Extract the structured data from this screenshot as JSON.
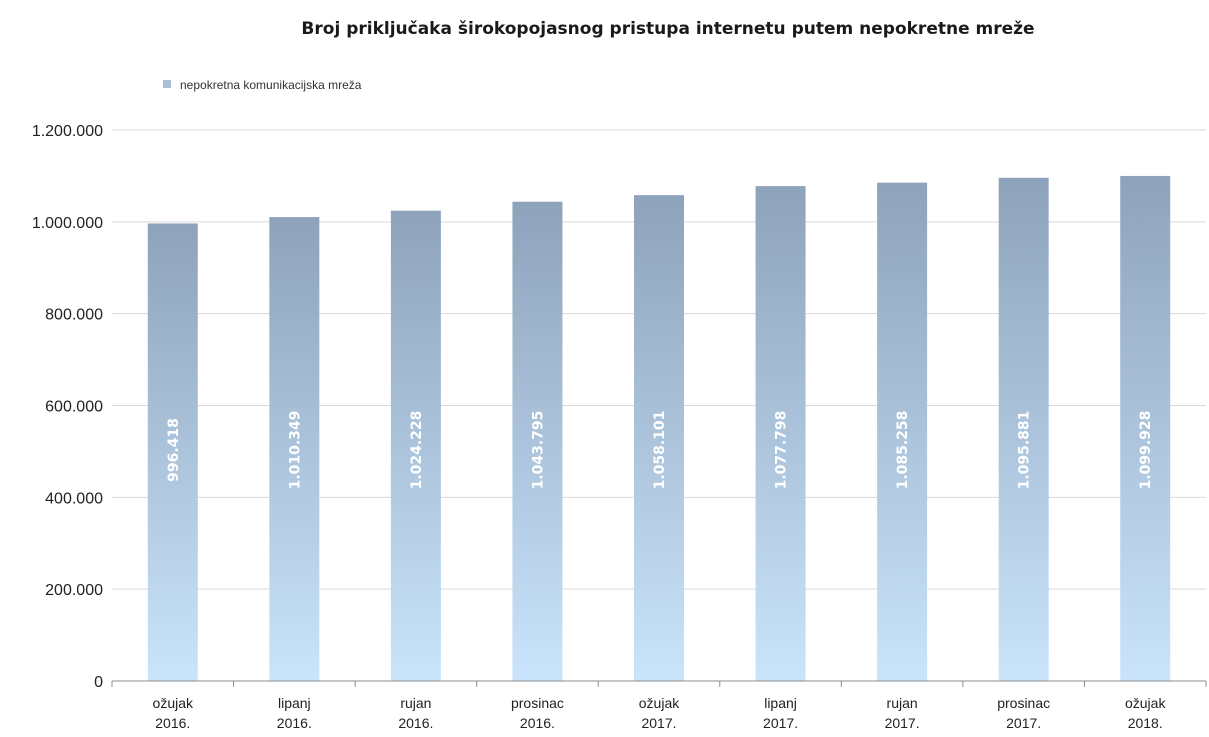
{
  "chart_data": {
    "type": "bar",
    "title": "Broj priključaka širokopojasnog pristupa internetu putem nepokretne mreže",
    "xlabel": "",
    "ylabel": "",
    "ylim": [
      0,
      1200000
    ],
    "yticks": [
      0,
      200000,
      400000,
      600000,
      800000,
      1000000,
      1200000
    ],
    "ytick_labels": [
      "0",
      "200.000",
      "400.000",
      "600.000",
      "800.000",
      "1.000.000",
      "1.200.000"
    ],
    "grid": true,
    "legend_position": "top-left",
    "categories": [
      [
        "ožujak",
        "2016."
      ],
      [
        "lipanj",
        "2016."
      ],
      [
        "rujan",
        "2016."
      ],
      [
        "prosinac",
        "2016."
      ],
      [
        "ožujak",
        "2017."
      ],
      [
        "lipanj",
        "2017."
      ],
      [
        "rujan",
        "2017."
      ],
      [
        "prosinac",
        "2017."
      ],
      [
        "ožujak",
        "2018."
      ]
    ],
    "series": [
      {
        "name": "nepokretna komunikacijska mreža",
        "color_top": "#8ea3bb",
        "color_bottom": "#c9e4fb",
        "values": [
          996418,
          1010349,
          1024228,
          1043795,
          1058101,
          1077798,
          1085258,
          1095881,
          1099928
        ],
        "value_labels": [
          "996.418",
          "1.010.349",
          "1.024.228",
          "1.043.795",
          "1.058.101",
          "1.077.798",
          "1.085.258",
          "1.095.881",
          "1.099.928"
        ]
      }
    ]
  }
}
